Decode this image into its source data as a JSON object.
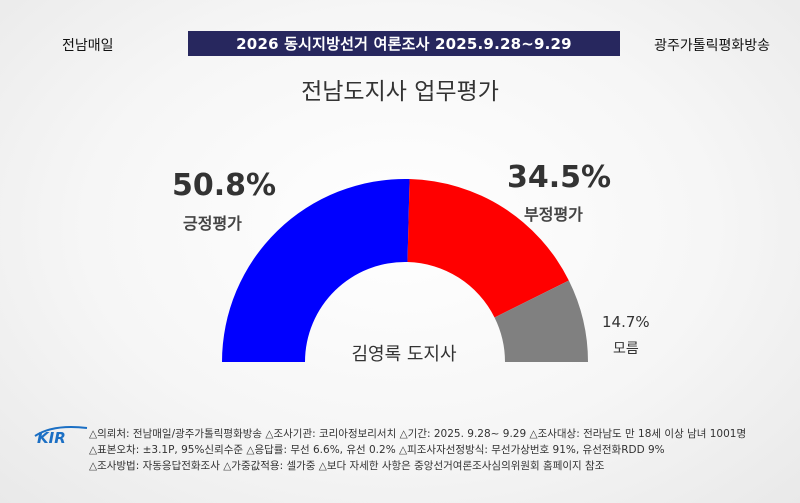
{
  "header": {
    "left": "전남매일",
    "title": "2026 동시지방선거 여론조사 2025.9.28~9.29",
    "right": "광주가톨릭평화방송"
  },
  "subtitle": "전남도지사 업무평가",
  "center_label": "김영록 도지사",
  "colors": {
    "positive": "#0000ff",
    "negative": "#ff0000",
    "unknown": "#808080",
    "band": "#27275e"
  },
  "chart_data": {
    "type": "pie",
    "style": "half-donut",
    "title": "전남도지사 업무평가",
    "categories": [
      "긍정평가",
      "부정평가",
      "모름"
    ],
    "values": [
      50.8,
      34.5,
      14.7
    ],
    "labels": [
      "50.8%",
      "34.5%",
      "14.7%"
    ],
    "unit": "%"
  },
  "footer": {
    "logo": "KIR",
    "lines": [
      "△의뢰처: 전남매일/광주가톨릭평화방송 △조사기관: 코리아정보리서치 △기간: 2025. 9.28~ 9.29 △조사대상: 전라남도 만 18세 이상 남녀 1001명",
      "△표본오차: ±3.1P, 95%신뢰수준 △응답률: 무선 6.6%, 유선 0.2% △피조사자선정방식: 무선가상번호 91%, 유선전화RDD 9%",
      "△조사방법: 자동응답전화조사 △가중값적용: 셀가중 △보다 자세한 사항은 중앙선거여론조사심의위원회 홈페이지 참조"
    ]
  }
}
